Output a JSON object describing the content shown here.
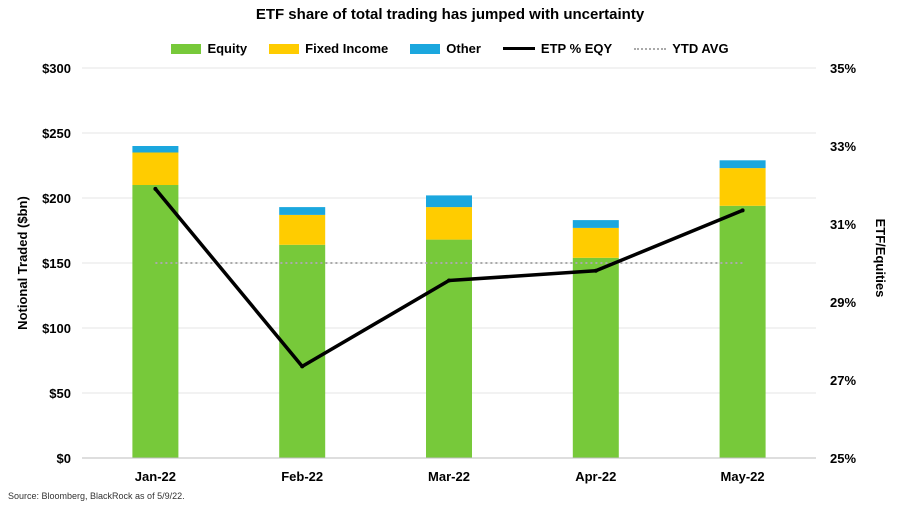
{
  "chart_data": {
    "type": "bar",
    "title": "ETF share of total trading has jumped with uncertainty",
    "categories": [
      "Jan-22",
      "Feb-22",
      "Mar-22",
      "Apr-22",
      "May-22"
    ],
    "series": [
      {
        "name": "Equity",
        "kind": "bar",
        "axis": "left",
        "color": "#77c93a",
        "values": [
          210,
          164,
          168,
          154,
          194
        ]
      },
      {
        "name": "Fixed Income",
        "kind": "bar",
        "axis": "left",
        "color": "#ffcc00",
        "values": [
          25,
          23,
          25,
          23,
          29
        ]
      },
      {
        "name": "Other",
        "kind": "bar",
        "axis": "left",
        "color": "#1ba7de",
        "values": [
          5,
          6,
          9,
          6,
          6
        ]
      },
      {
        "name": "ETP % EQY",
        "kind": "line",
        "axis": "right",
        "color": "#000000",
        "values": [
          31.9,
          27.35,
          29.55,
          29.8,
          31.35
        ]
      },
      {
        "name": "YTD AVG",
        "kind": "dotted-line",
        "axis": "left",
        "color": "#aaaaaa",
        "values": [
          150,
          150,
          150,
          150,
          150
        ]
      }
    ],
    "ylabel": "Notional Traded ($bn)",
    "ylabel_right": "ETF/Equities",
    "ylim": [
      0,
      300
    ],
    "ylim_right": [
      25,
      35
    ],
    "yticks": [
      "$0",
      "$50",
      "$100",
      "$150",
      "$200",
      "$250",
      "$300"
    ],
    "yticks_right": [
      "25%",
      "27%",
      "29%",
      "31%",
      "33%",
      "35%"
    ],
    "grid": true,
    "legend_position": "top-center"
  },
  "source": "Source: Bloomberg, BlackRock as of 5/9/22."
}
